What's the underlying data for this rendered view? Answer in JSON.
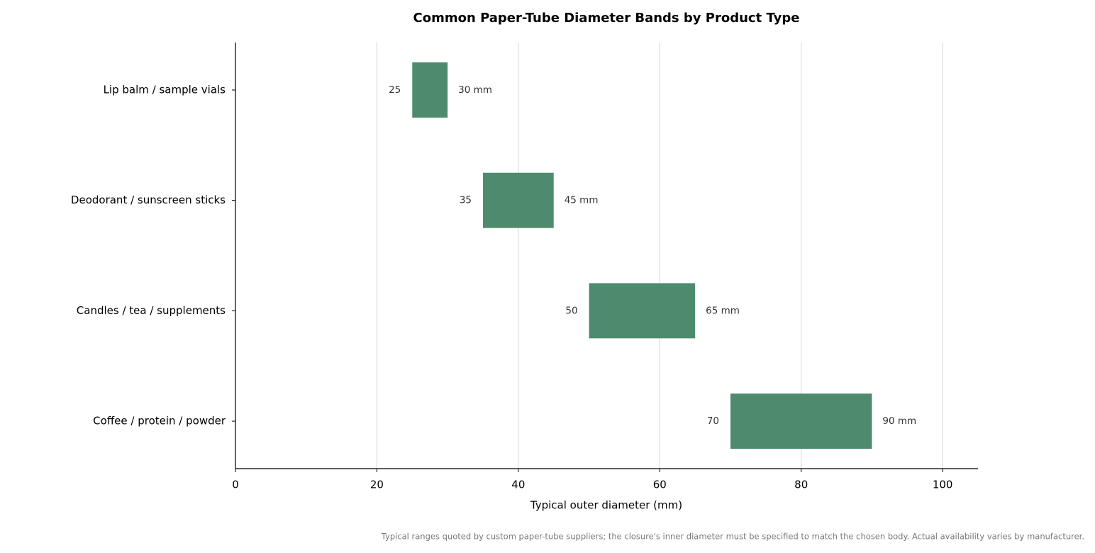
{
  "chart_data": {
    "type": "range-bar",
    "title": "Common Paper-Tube Diameter Bands by Product Type",
    "xlabel": "Typical outer diameter (mm)",
    "note": "Typical ranges quoted by custom paper-tube suppliers; the closure's inner diameter must be specified to match the chosen body. Actual availability varies by manufacturer.",
    "categories": [
      "Lip balm / sample vials",
      "Deodorant / sunscreen sticks",
      "Candles / tea / supplements",
      "Coffee / protein / powder"
    ],
    "series": [
      {
        "values": [
          25,
          35,
          50,
          70
        ]
      },
      {
        "values": [
          30,
          45,
          65,
          90
        ],
        "value_labels": [
          "30 mm",
          "45 mm",
          "65 mm",
          "90 mm"
        ]
      }
    ],
    "color": "#4e8b6e",
    "xlim": [
      0,
      105
    ],
    "xticks": [
      0,
      20,
      40,
      60,
      80,
      100
    ],
    "grid": true
  }
}
